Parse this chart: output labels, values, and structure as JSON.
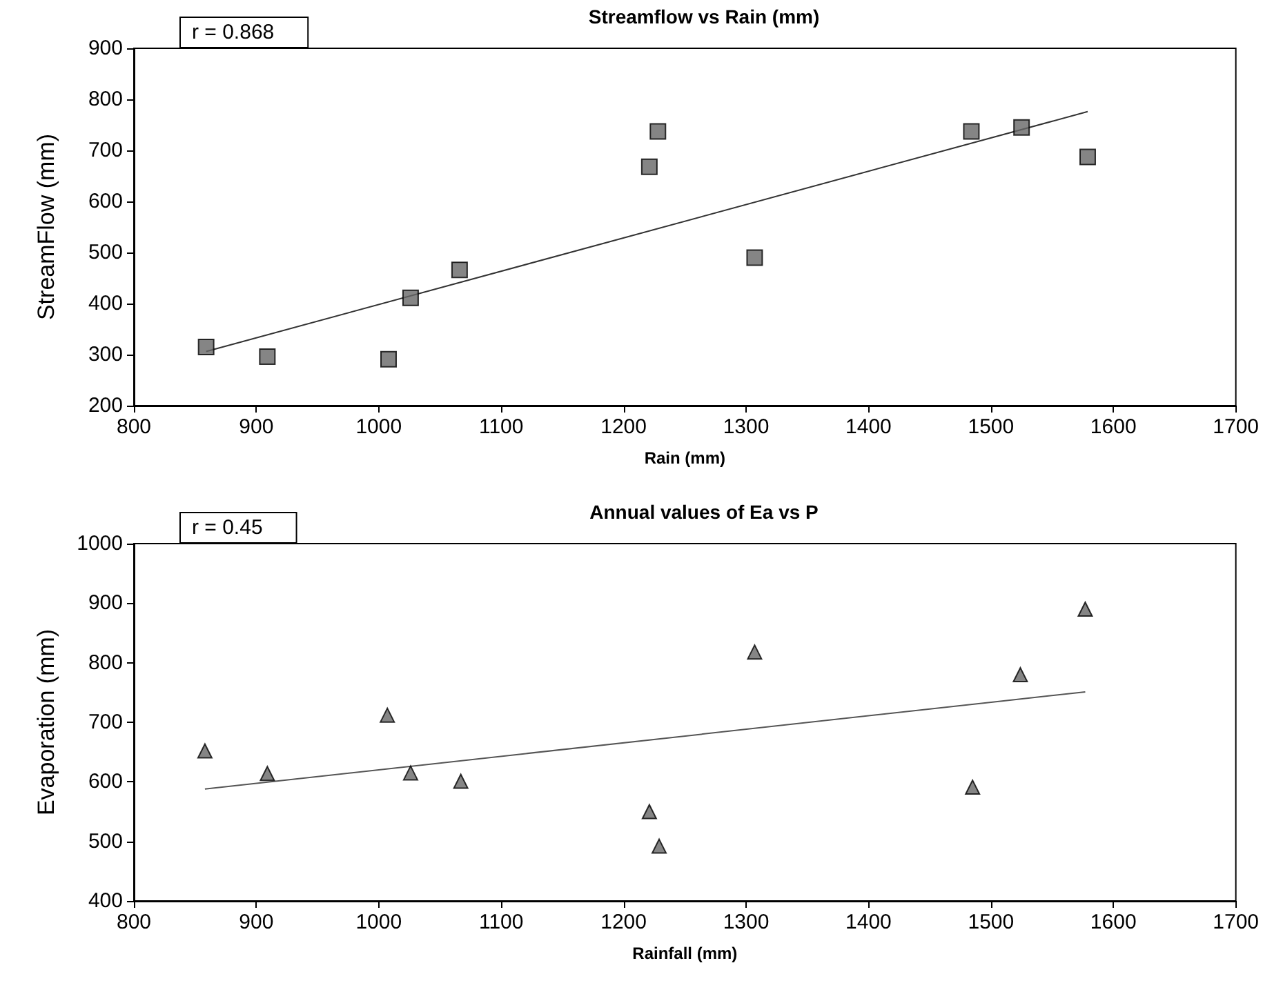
{
  "chart_data": [
    {
      "type": "scatter",
      "title": "Streamflow vs Rain (mm)",
      "xlabel": "Rain (mm)",
      "ylabel": "StreamFlow (mm)",
      "annotations": [
        "r = 0.868"
      ],
      "grid": false,
      "xlim": [
        800,
        1700
      ],
      "xticks": [
        800,
        900,
        1000,
        1100,
        1200,
        1300,
        1400,
        1500,
        1600,
        1700
      ],
      "ylim": [
        200,
        900
      ],
      "yticks": [
        200,
        300,
        400,
        500,
        600,
        700,
        800,
        900
      ],
      "x": [
        859,
        909,
        1008,
        1026,
        1066,
        1221,
        1228,
        1307,
        1484,
        1525,
        1579
      ],
      "series": [
        {
          "color": "#666666",
          "marker": "square",
          "values": [
            315,
            296,
            291,
            411,
            466,
            668,
            737,
            490,
            737,
            745,
            687
          ]
        },
        {
          "type": "line",
          "marker": "none",
          "color": "#333333",
          "x": [
            859,
            1579
          ],
          "values": [
            306,
            776
          ]
        }
      ]
    },
    {
      "type": "scatter",
      "title": "Annual values of Ea vs P",
      "xlabel": "Rainfall (mm)",
      "ylabel": "Evaporation (mm)",
      "annotations": [
        "r = 0.45"
      ],
      "grid": false,
      "xlim": [
        800,
        1700
      ],
      "xticks": [
        800,
        900,
        1000,
        1100,
        1200,
        1300,
        1400,
        1500,
        1600,
        1700
      ],
      "ylim": [
        400,
        1000
      ],
      "yticks": [
        400,
        500,
        600,
        700,
        800,
        900,
        1000
      ],
      "x": [
        858,
        909,
        1007,
        1026,
        1067,
        1221,
        1229,
        1307,
        1485,
        1524,
        1577
      ],
      "series": [
        {
          "color": "#666666",
          "marker": "triangle",
          "values": [
            652,
            614,
            712,
            615,
            601,
            550,
            492,
            818,
            591,
            780,
            890
          ]
        },
        {
          "type": "line",
          "marker": "none",
          "color": "#555555",
          "x": [
            858,
            1577
          ],
          "values": [
            588,
            751
          ]
        }
      ]
    }
  ]
}
